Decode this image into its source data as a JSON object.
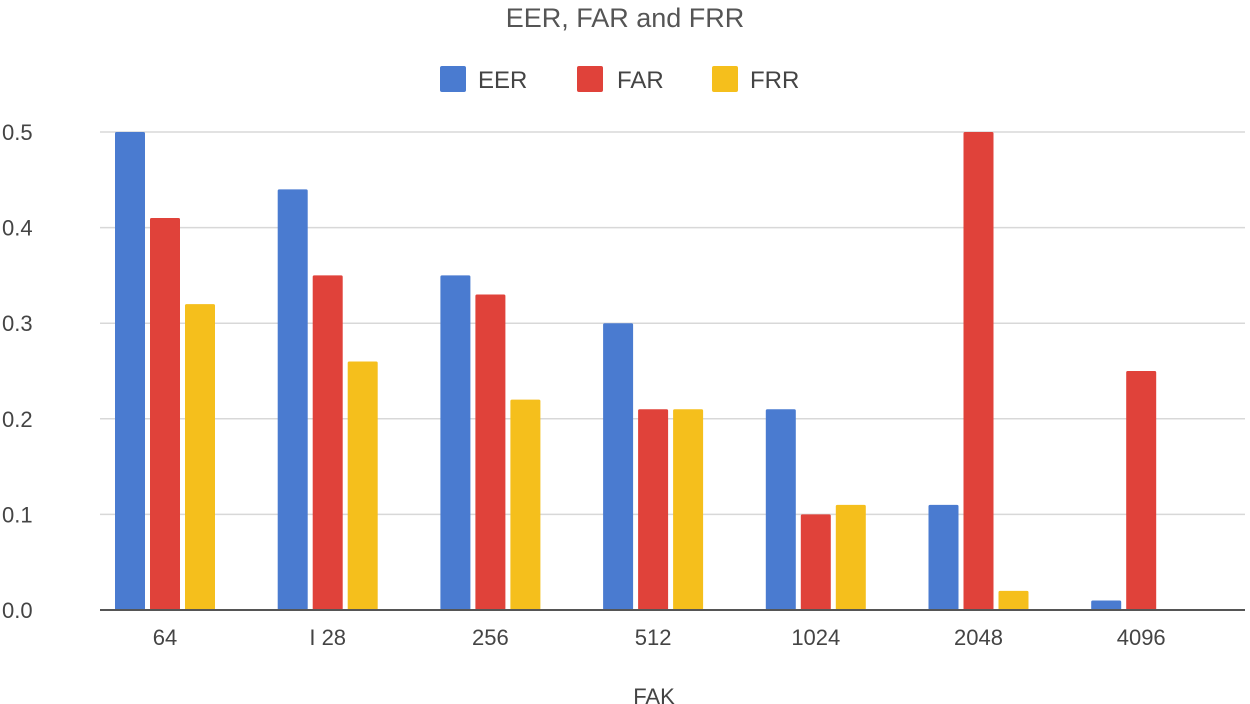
{
  "chart_data": {
    "type": "bar",
    "title": "EER, FAR and FRR",
    "xlabel": "FAK",
    "ylabel": "",
    "ylim": [
      0,
      0.5
    ],
    "yticks": [
      "0.0",
      "0.1",
      "0.2",
      "0.3",
      "0.4",
      "0.5"
    ],
    "grid": true,
    "legend_position": "top-center",
    "categories": [
      "64",
      "I 28",
      "256",
      "512",
      "1024",
      "2048",
      "4096"
    ],
    "series": [
      {
        "name": "EER",
        "color": "#4a7bd0",
        "values": [
          0.5,
          0.44,
          0.35,
          0.3,
          0.21,
          0.11,
          0.01
        ]
      },
      {
        "name": "FAR",
        "color": "#e0423a",
        "values": [
          0.41,
          0.35,
          0.33,
          0.21,
          0.1,
          0.5,
          0.25
        ]
      },
      {
        "name": "FRR",
        "color": "#f5bf1c",
        "values": [
          0.32,
          0.26,
          0.22,
          0.21,
          0.11,
          0.02,
          0
        ]
      }
    ]
  }
}
